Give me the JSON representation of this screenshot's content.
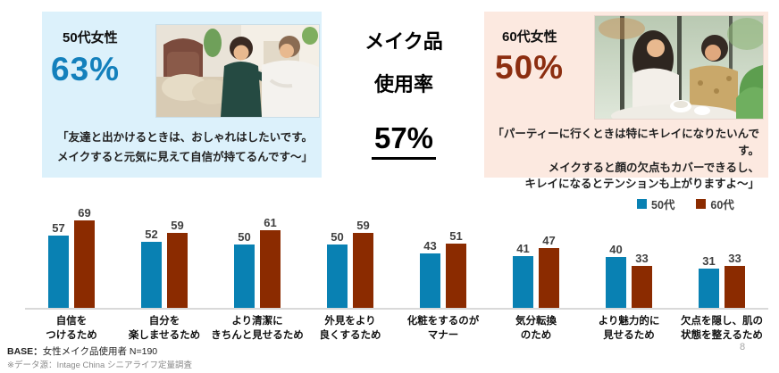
{
  "page": {
    "number": "8"
  },
  "center": {
    "line1": "メイク品",
    "line2": "使用率",
    "value": "57%"
  },
  "panel_50s": {
    "title": "50代女性",
    "value": "63%",
    "quote": "「友達と出かけるときは、おしゃれはしたいです。\nメイクすると元気に見えて自信が持てるんです〜」",
    "bg_color": "#DCF1FB",
    "value_color": "#1380BC",
    "photo_alt": "two-women-chatting-on-sofa"
  },
  "panel_60s": {
    "title": "60代女性",
    "value": "50%",
    "quote": "「パーティーに行くときは特にキレイになりたいんです。\nメイクすると顔の欠点もカバーできるし、\nキレイになるとテンションも上がりますよ〜」",
    "bg_color": "#FCE9E0",
    "value_color": "#8C2E10",
    "photo_alt": "two-women-talking-in-cafe"
  },
  "footer": {
    "base_label": "BASE：",
    "base_text": "女性メイク品使用者 N=190",
    "source": "※データ源：Intage China シニアライフ定量調査"
  },
  "chart_data": {
    "type": "bar",
    "categories": [
      "自信を\nつけるため",
      "自分を\n楽しませるため",
      "より清潔に\nきちんと見せるため",
      "外見をより\n良くするため",
      "化粧をするのが\nマナー",
      "気分転換\nのため",
      "より魅力的に\n見せるため",
      "欠点を隠し、肌の\n状態を整えるため"
    ],
    "series": [
      {
        "name": "50代",
        "color": "#0981B3",
        "values": [
          57,
          52,
          50,
          50,
          43,
          41,
          40,
          31
        ]
      },
      {
        "name": "60代",
        "color": "#8B2B00",
        "values": [
          69,
          59,
          61,
          59,
          51,
          47,
          33,
          33
        ]
      }
    ],
    "ylim": [
      0,
      80
    ],
    "grid": false,
    "legend_position": "top-right",
    "value_labels": true,
    "baseline_color": "#D9D9D9"
  }
}
